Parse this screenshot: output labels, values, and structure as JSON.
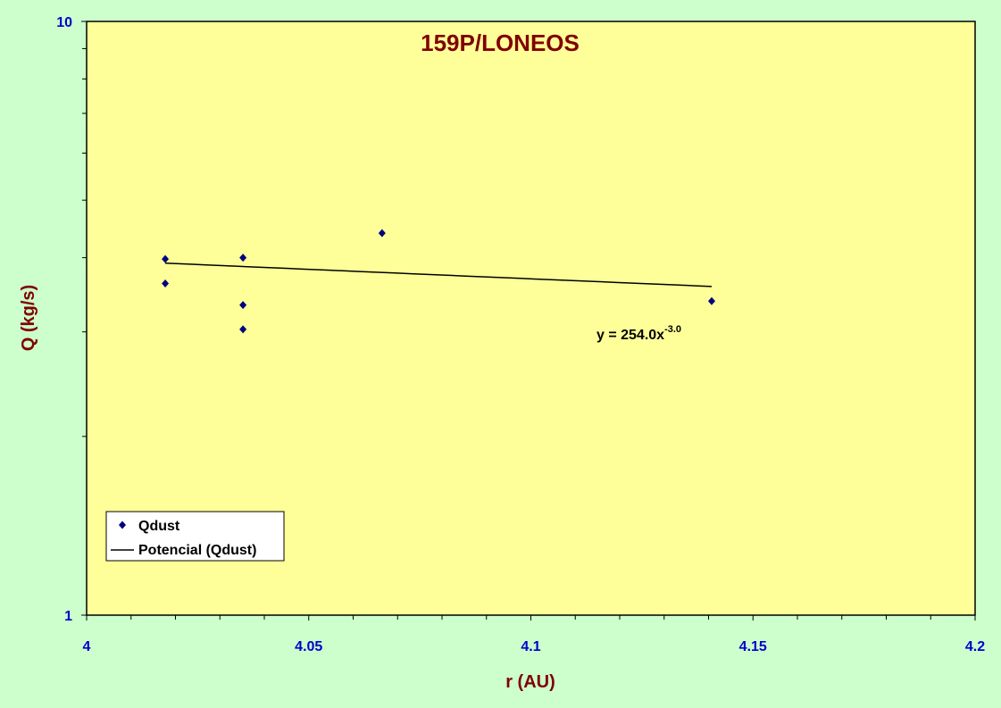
{
  "chart_data": {
    "type": "scatter",
    "title": "159P/LONEOS",
    "xlabel": "r (AU)",
    "ylabel": "Q (kg/s)",
    "xlim": [
      4,
      4.2
    ],
    "ylim": [
      1,
      10
    ],
    "y_scale": "log",
    "x_ticks": [
      "4",
      "4.05",
      "4.1",
      "4.15",
      "4.2"
    ],
    "x_tick_values": [
      4,
      4.05,
      4.1,
      4.15,
      4.2
    ],
    "y_ticks": [
      "1",
      "10"
    ],
    "y_tick_values": [
      1,
      10
    ],
    "grid": false,
    "legend_position": "bottom-left",
    "series": [
      {
        "name": "Qdust",
        "marker": "diamond",
        "color": "#000080",
        "x": [
          4.0177,
          4.0177,
          4.0352,
          4.0352,
          4.0352,
          4.0665,
          4.1407
        ],
        "y": [
          3.98,
          3.62,
          4.0,
          3.33,
          3.03,
          4.4,
          3.38
        ]
      }
    ],
    "trendline": {
      "name": "Potencial (Qdust)",
      "type": "power",
      "a": 254.0,
      "b": -3.0,
      "x_range": [
        4.0177,
        4.1407
      ],
      "color": "#000000",
      "equation_prefix": "y = 254.0x",
      "equation_exponent": "-3.0"
    },
    "colors": {
      "page_background": "#ccffcc",
      "plot_background": "#ffff99",
      "title": "#800000",
      "tick_labels": "#0000cc",
      "markers": "#000080"
    }
  }
}
